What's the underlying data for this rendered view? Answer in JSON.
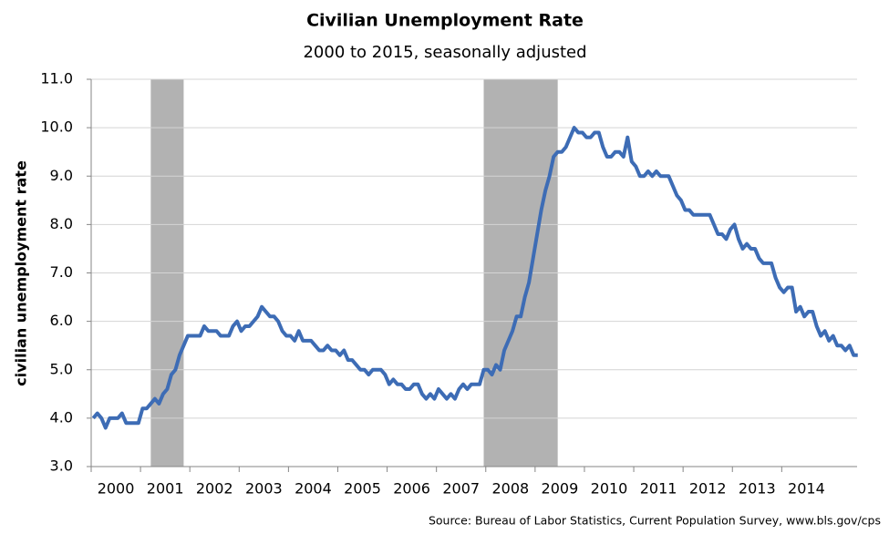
{
  "chart_data": {
    "type": "line",
    "title": "Civilian Unemployment Rate",
    "subtitle": "2000 to 2015, seasonally adjusted",
    "y_label": "civilian unemployment rate",
    "source": "Source: Bureau of Labor Statistics, Current Population Survey, www.bls.gov/cps",
    "categories": [
      "2000",
      null,
      null,
      null,
      null,
      null,
      null,
      null,
      null,
      null,
      null,
      null,
      "2001",
      null,
      null,
      null,
      null,
      null,
      null,
      null,
      null,
      null,
      null,
      null,
      "2002",
      null,
      null,
      null,
      null,
      null,
      null,
      null,
      null,
      null,
      null,
      null,
      "2003",
      null,
      null,
      null,
      null,
      null,
      null,
      null,
      null,
      null,
      null,
      null,
      "2004",
      null,
      null,
      null,
      null,
      null,
      null,
      null,
      null,
      null,
      null,
      null,
      "2005",
      null,
      null,
      null,
      null,
      null,
      null,
      null,
      null,
      null,
      null,
      null,
      "2006",
      null,
      null,
      null,
      null,
      null,
      null,
      null,
      null,
      null,
      null,
      null,
      "2007",
      null,
      null,
      null,
      null,
      null,
      null,
      null,
      null,
      null,
      null,
      null,
      "2008",
      null,
      null,
      null,
      null,
      null,
      null,
      null,
      null,
      null,
      null,
      null,
      "2009",
      null,
      null,
      null,
      null,
      null,
      null,
      null,
      null,
      null,
      null,
      null,
      "2010",
      null,
      null,
      null,
      null,
      null,
      null,
      null,
      null,
      null,
      null,
      null,
      "2011",
      null,
      null,
      null,
      null,
      null,
      null,
      null,
      null,
      null,
      null,
      null,
      "2012",
      null,
      null,
      null,
      null,
      null,
      null,
      null,
      null,
      null,
      null,
      null,
      "2013",
      null,
      null,
      null,
      null,
      null,
      null,
      null,
      null,
      null,
      null,
      null,
      "2014",
      null,
      null,
      null,
      null,
      null,
      null,
      null,
      null,
      null,
      null,
      null,
      null,
      null,
      null,
      null,
      null,
      null,
      null
    ],
    "series": [
      {
        "name": "civilian unemployment rate",
        "color": "#3d6cb5",
        "values": [
          4.0,
          4.1,
          4.0,
          3.8,
          4.0,
          4.0,
          4.0,
          4.1,
          3.9,
          3.9,
          3.9,
          3.9,
          4.2,
          4.2,
          4.3,
          4.4,
          4.3,
          4.5,
          4.6,
          4.9,
          5.0,
          5.3,
          5.5,
          5.7,
          5.7,
          5.7,
          5.7,
          5.9,
          5.8,
          5.8,
          5.8,
          5.7,
          5.7,
          5.7,
          5.9,
          6.0,
          5.8,
          5.9,
          5.9,
          6.0,
          6.1,
          6.3,
          6.2,
          6.1,
          6.1,
          6.0,
          5.8,
          5.7,
          5.7,
          5.6,
          5.8,
          5.6,
          5.6,
          5.6,
          5.5,
          5.4,
          5.4,
          5.5,
          5.4,
          5.4,
          5.3,
          5.4,
          5.2,
          5.2,
          5.1,
          5.0,
          5.0,
          4.9,
          5.0,
          5.0,
          5.0,
          4.9,
          4.7,
          4.8,
          4.7,
          4.7,
          4.6,
          4.6,
          4.7,
          4.7,
          4.5,
          4.4,
          4.5,
          4.4,
          4.6,
          4.5,
          4.4,
          4.5,
          4.4,
          4.6,
          4.7,
          4.6,
          4.7,
          4.7,
          4.7,
          5.0,
          5.0,
          4.9,
          5.1,
          5.0,
          5.4,
          5.6,
          5.8,
          6.1,
          6.1,
          6.5,
          6.8,
          7.3,
          7.8,
          8.3,
          8.7,
          9.0,
          9.4,
          9.5,
          9.5,
          9.6,
          9.8,
          10.0,
          9.9,
          9.9,
          9.8,
          9.8,
          9.9,
          9.9,
          9.6,
          9.4,
          9.4,
          9.5,
          9.5,
          9.4,
          9.8,
          9.3,
          9.2,
          9.0,
          9.0,
          9.1,
          9.0,
          9.1,
          9.0,
          9.0,
          9.0,
          8.8,
          8.6,
          8.5,
          8.3,
          8.3,
          8.2,
          8.2,
          8.2,
          8.2,
          8.2,
          8.0,
          7.8,
          7.8,
          7.7,
          7.9,
          8.0,
          7.7,
          7.5,
          7.6,
          7.5,
          7.5,
          7.3,
          7.2,
          7.2,
          7.2,
          6.9,
          6.7,
          6.6,
          6.7,
          6.7,
          6.2,
          6.3,
          6.1,
          6.2,
          6.2,
          5.9,
          5.7,
          5.8,
          5.6,
          5.7,
          5.5,
          5.5,
          5.4,
          5.5,
          5.3,
          5.3
        ]
      }
    ],
    "shaded_ranges": [
      {
        "start": 14,
        "end": 22,
        "color": "#b2b2b2"
      },
      {
        "start": 95,
        "end": 113,
        "color": "#b2b2b2"
      }
    ],
    "ylim": [
      3,
      11
    ],
    "yticks": [
      {
        "value": 3,
        "label": "3.0"
      },
      {
        "value": 4,
        "label": "4.0"
      },
      {
        "value": 5,
        "label": "5.0"
      },
      {
        "value": 6,
        "label": "6.0"
      },
      {
        "value": 7,
        "label": "7.0"
      },
      {
        "value": 8,
        "label": "8.0"
      },
      {
        "value": 9,
        "label": "9.0"
      },
      {
        "value": 10,
        "label": "10.0"
      },
      {
        "value": 11,
        "label": "11.0"
      }
    ],
    "grid": true
  }
}
